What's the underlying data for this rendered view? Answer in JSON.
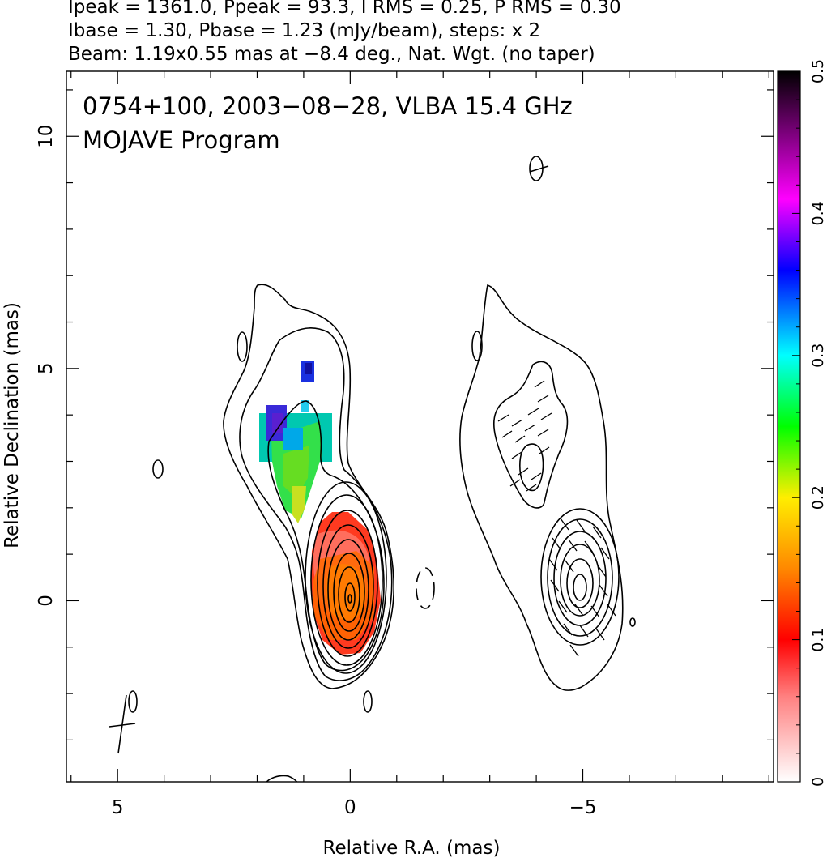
{
  "header": {
    "line1": "Ipeak = 1361.0, Ppeak = 93.3, I RMS = 0.25, P RMS = 0.30",
    "line2": "Ibase = 1.30, Pbase = 1.23 (mJy/beam), steps: x 2",
    "line3": "Beam: 1.19x0.55 mas at −8.4 deg., Nat. Wgt. (no taper)"
  },
  "plot": {
    "title_line1": "0754+100, 2003−08−28, VLBA 15.4 GHz",
    "title_line2": "MOJAVE Program",
    "xlabel": "Relative R.A. (mas)",
    "ylabel": "Relative Declination (mas)",
    "xticks": [
      {
        "value": 5,
        "label": "5"
      },
      {
        "value": 0,
        "label": "0"
      },
      {
        "value": -5,
        "label": "−5"
      }
    ],
    "yticks": [
      {
        "value": 0,
        "label": "0"
      },
      {
        "value": 5,
        "label": "5"
      },
      {
        "value": 10,
        "label": "10"
      }
    ],
    "xlim": [
      6.1,
      -9.1
    ],
    "ylim": [
      -3.9,
      11.4
    ]
  },
  "colorbar": {
    "ticks": [
      {
        "value": 0,
        "label": "0"
      },
      {
        "value": 0.1,
        "label": "0.1"
      },
      {
        "value": 0.2,
        "label": "0.2"
      },
      {
        "value": 0.3,
        "label": "0.3"
      },
      {
        "value": 0.4,
        "label": "0.4"
      },
      {
        "value": 0.5,
        "label": "0.5"
      }
    ],
    "range": [
      0,
      0.5
    ],
    "stops": [
      "#ffffff",
      "#ff0000",
      "#ff8800",
      "#ffff00",
      "#00ff00",
      "#00ffff",
      "#0000ff",
      "#ff00ff",
      "#000000"
    ]
  },
  "colors": {
    "low_frac_pol": "#ff0000",
    "mid_frac_pol": "#00ff00",
    "high_frac_pol": "#0000ff",
    "contour": "#000000"
  }
}
